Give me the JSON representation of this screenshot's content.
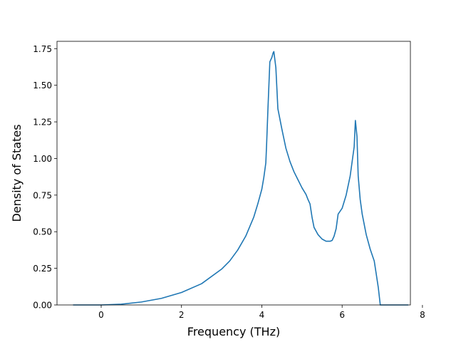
{
  "chart_data": {
    "type": "line",
    "title": "",
    "xlabel": "Frequency (THz)",
    "ylabel": "Density of States",
    "xlim": [
      -1.1,
      7.7
    ],
    "ylim": [
      0.0,
      1.8
    ],
    "xticks": [
      0,
      2,
      4,
      6,
      8
    ],
    "xtick_labels": [
      "0",
      "2",
      "4",
      "6",
      "8"
    ],
    "yticks": [
      0.0,
      0.25,
      0.5,
      0.75,
      1.0,
      1.25,
      1.5,
      1.75
    ],
    "ytick_labels": [
      "0.00",
      "0.25",
      "0.50",
      "0.75",
      "1.00",
      "1.25",
      "1.50",
      "1.75"
    ],
    "grid": false,
    "series": [
      {
        "color": "#1f77b4",
        "x": [
          -0.7,
          0.0,
          0.5,
          1.0,
          1.5,
          2.0,
          2.5,
          3.0,
          3.2,
          3.4,
          3.6,
          3.8,
          3.9,
          4.0,
          4.05,
          4.1,
          4.12,
          4.15,
          4.2,
          4.25,
          4.28,
          4.3,
          4.35,
          4.4,
          4.5,
          4.6,
          4.7,
          4.8,
          4.9,
          5.0,
          5.1,
          5.15,
          5.2,
          5.25,
          5.3,
          5.4,
          5.5,
          5.6,
          5.7,
          5.75,
          5.8,
          5.85,
          5.9,
          6.0,
          6.1,
          6.2,
          6.25,
          6.3,
          6.33,
          6.37,
          6.4,
          6.45,
          6.5,
          6.55,
          6.6,
          6.7,
          6.8,
          6.9,
          6.95,
          7.0,
          7.3,
          7.65
        ],
        "y": [
          0.0,
          0.0,
          0.005,
          0.02,
          0.045,
          0.085,
          0.145,
          0.245,
          0.3,
          0.375,
          0.47,
          0.6,
          0.69,
          0.79,
          0.87,
          0.97,
          1.1,
          1.32,
          1.66,
          1.69,
          1.72,
          1.73,
          1.62,
          1.34,
          1.2,
          1.07,
          0.98,
          0.91,
          0.855,
          0.8,
          0.755,
          0.72,
          0.69,
          0.6,
          0.53,
          0.48,
          0.45,
          0.435,
          0.435,
          0.44,
          0.47,
          0.52,
          0.62,
          0.66,
          0.75,
          0.88,
          0.98,
          1.08,
          1.26,
          1.15,
          0.88,
          0.72,
          0.62,
          0.55,
          0.48,
          0.38,
          0.3,
          0.12,
          0.0,
          0.0,
          0.0,
          0.0
        ]
      }
    ]
  }
}
